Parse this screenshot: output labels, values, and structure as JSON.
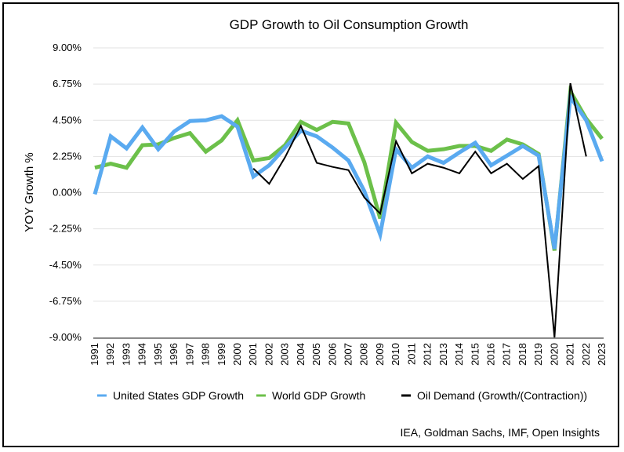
{
  "chart_data": {
    "type": "line",
    "title": "GDP Growth to Oil Consumption Growth",
    "ylabel": "YOY Growth %",
    "xlabel": "",
    "ylim": [
      -9,
      9
    ],
    "y_ticks": [
      "9.00%",
      "6.75%",
      "4.50%",
      "2.25%",
      "0.00%",
      "-2.25%",
      "-4.50%",
      "-6.75%",
      "-9.00%"
    ],
    "y_tick_values": [
      9,
      6.75,
      4.5,
      2.25,
      0,
      -2.25,
      -4.5,
      -6.75,
      -9
    ],
    "grid": true,
    "legend_position": "bottom",
    "x": [
      "1991",
      "1992",
      "1993",
      "1994",
      "1995",
      "1996",
      "1997",
      "1998",
      "1999",
      "2000",
      "2001",
      "2002",
      "2003",
      "2004",
      "2005",
      "2006",
      "2007",
      "2008",
      "2009",
      "2010",
      "2011",
      "2012",
      "2013",
      "2014",
      "2015",
      "2016",
      "2017",
      "2018",
      "2019",
      "2020",
      "2021",
      "2022",
      "2023"
    ],
    "series": [
      {
        "name": "United States GDP Growth",
        "color": "#5aaaf0",
        "width": 5,
        "values": [
          -0.1,
          3.5,
          2.75,
          4.05,
          2.7,
          3.8,
          4.45,
          4.5,
          4.75,
          4.1,
          1.0,
          1.7,
          2.8,
          3.85,
          3.5,
          2.8,
          2.0,
          0.1,
          -2.6,
          2.7,
          1.55,
          2.25,
          1.85,
          2.5,
          3.1,
          1.7,
          2.3,
          2.9,
          2.3,
          -3.5,
          5.95,
          4.5,
          1.95
        ]
      },
      {
        "name": "World GDP Growth",
        "color": "#6cc04a",
        "width": 5,
        "values": [
          1.55,
          1.8,
          1.55,
          2.95,
          3.0,
          3.4,
          3.7,
          2.55,
          3.25,
          4.5,
          2.0,
          2.15,
          2.95,
          4.4,
          3.9,
          4.4,
          4.3,
          1.9,
          -1.6,
          4.35,
          3.15,
          2.6,
          2.7,
          2.9,
          2.9,
          2.6,
          3.3,
          3.0,
          2.4,
          -3.6,
          6.3,
          4.6,
          3.35
        ]
      },
      {
        "name": "Oil Demand (Growth/(Contraction))",
        "color": "#000000",
        "width": 2,
        "values": [
          null,
          null,
          null,
          null,
          null,
          null,
          null,
          null,
          null,
          null,
          1.5,
          0.55,
          2.2,
          4.15,
          1.85,
          1.6,
          1.4,
          -0.3,
          -1.3,
          3.2,
          1.2,
          1.8,
          1.55,
          1.2,
          2.55,
          1.2,
          1.8,
          0.85,
          1.65,
          -9.0,
          6.8,
          2.25,
          null
        ]
      }
    ]
  },
  "legend": [
    {
      "label": "United States GDP Growth",
      "color": "#5aaaf0"
    },
    {
      "label": "World GDP Growth",
      "color": "#6cc04a"
    },
    {
      "label": "Oil Demand (Growth/(Contraction))",
      "color": "#000000"
    }
  ],
  "source": "IEA, Goldman Sachs, IMF, Open Insights"
}
